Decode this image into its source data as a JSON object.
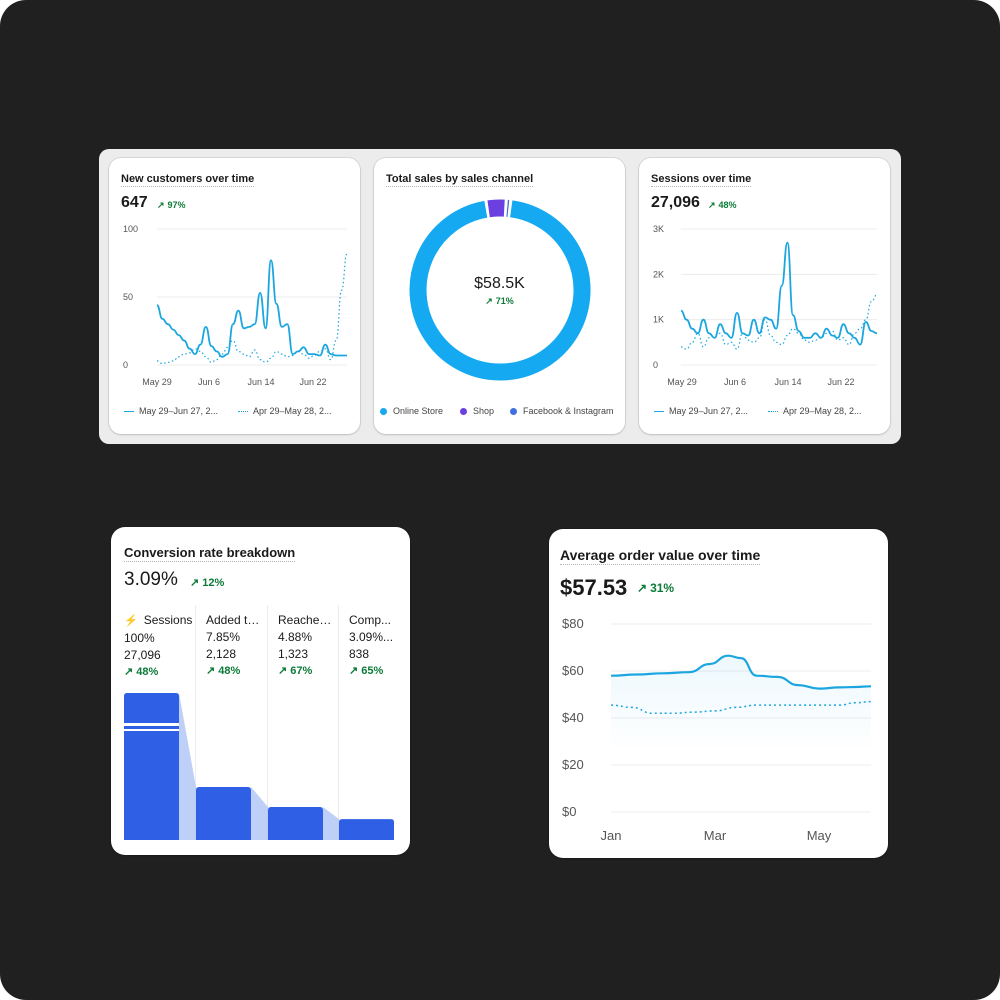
{
  "colors": {
    "line": "#1ba6e0",
    "online_store": "#14a9f0",
    "shop": "#6b3fe0",
    "facebook_instagram": "#3f6fe0",
    "funnel_bar": "#2f5fe5",
    "positive": "#0c7a37"
  },
  "new_customers": {
    "title": "New customers over time",
    "value": "647",
    "delta": "97%",
    "delta_icon": "arrow-up-right-icon",
    "legend": [
      "May 29–Jun 27, 2...",
      "Apr 29–May 28, 2..."
    ],
    "chart_data": {
      "type": "line",
      "ylim": [
        0,
        100
      ],
      "y_ticks": [
        "100",
        "50",
        "0"
      ],
      "x_ticks": [
        "May 29",
        "Jun 6",
        "Jun 14",
        "Jun 22"
      ],
      "series": [
        {
          "name": "May 29–Jun 27, 2...",
          "style": "solid",
          "values": [
            44,
            34,
            30,
            26,
            22,
            18,
            12,
            8,
            15,
            28,
            14,
            10,
            6,
            8,
            30,
            40,
            27,
            28,
            30,
            53,
            27,
            77,
            45,
            28,
            30,
            8,
            10,
            13,
            8,
            8,
            7,
            15,
            8,
            7,
            7,
            7
          ]
        },
        {
          "name": "Apr 29–May 28, 2...",
          "style": "dotted",
          "values": [
            3,
            1,
            2,
            3,
            6,
            8,
            9,
            12,
            10,
            6,
            2,
            4,
            8,
            13,
            18,
            10,
            8,
            6,
            11,
            4,
            2,
            5,
            10,
            8,
            6,
            7,
            10,
            8,
            5,
            7,
            10,
            12,
            4,
            18,
            55,
            82
          ]
        }
      ]
    }
  },
  "sales_channel": {
    "title": "Total sales by sales channel",
    "center_value": "$58.5K",
    "center_delta": "71%",
    "legend": [
      "Online Store",
      "Shop",
      "Facebook & Instagram"
    ],
    "chart_data": {
      "type": "pie",
      "categories": [
        "Online Store",
        "Shop",
        "Facebook & Instagram"
      ],
      "values": [
        95.6,
        3.6,
        0.8
      ]
    }
  },
  "sessions": {
    "title": "Sessions over time",
    "value": "27,096",
    "delta": "48%",
    "legend": [
      "May 29–Jun 27, 2...",
      "Apr 29–May 28, 2..."
    ],
    "chart_data": {
      "type": "line",
      "ylim": [
        0,
        3000
      ],
      "y_ticks": [
        "3K",
        "2K",
        "1K",
        "0"
      ],
      "x_ticks": [
        "May 29",
        "Jun 6",
        "Jun 14",
        "Jun 22"
      ],
      "series": [
        {
          "name": "May 29–Jun 27, 2...",
          "style": "solid",
          "values": [
            1200,
            1000,
            800,
            700,
            1000,
            700,
            600,
            900,
            700,
            600,
            1150,
            700,
            650,
            1000,
            700,
            1050,
            1000,
            800,
            1750,
            2700,
            1100,
            750,
            600,
            600,
            700,
            600,
            800,
            650,
            600,
            900,
            700,
            600,
            450,
            950,
            750,
            700
          ]
        },
        {
          "name": "Apr 29–May 28, 2...",
          "style": "dotted",
          "values": [
            400,
            350,
            500,
            700,
            400,
            600,
            650,
            700,
            450,
            500,
            350,
            700,
            550,
            500,
            600,
            1000,
            650,
            500,
            450,
            650,
            800,
            700,
            550,
            500,
            550,
            600,
            700,
            750,
            550,
            600,
            450,
            700,
            800,
            1000,
            1400,
            1550
          ]
        }
      ]
    }
  },
  "conversion": {
    "title": "Conversion rate breakdown",
    "value": "3.09%",
    "delta": "12%",
    "steps": [
      {
        "label": "Sessions",
        "rate": "100%",
        "count": "27,096",
        "delta": "48%"
      },
      {
        "label": "Added to...",
        "rate": "7.85%",
        "count": "2,128",
        "delta": "48%"
      },
      {
        "label": "Reached...",
        "rate": "4.88%",
        "count": "1,323",
        "delta": "67%"
      },
      {
        "label": "Comp...",
        "rate": "3.09%...",
        "count": "838",
        "delta": "65%"
      }
    ],
    "chart_data": {
      "type": "bar",
      "categories": [
        "Sessions",
        "Added to...",
        "Reached...",
        "Comp..."
      ],
      "values": [
        27096,
        2128,
        1323,
        838
      ],
      "axis_break": true
    }
  },
  "aov": {
    "title": "Average order value over time",
    "value": "$57.53",
    "delta": "31%",
    "chart_data": {
      "type": "line",
      "ylim": [
        0,
        80
      ],
      "y_ticks": [
        "$80",
        "$60",
        "$40",
        "$20",
        "$0"
      ],
      "x_ticks": [
        "Jan",
        "Mar",
        "May"
      ],
      "series": [
        {
          "style": "solid",
          "x": [
            0,
            0.1,
            0.2,
            0.3,
            0.38,
            0.45,
            0.5,
            0.56,
            0.64,
            0.72,
            0.8,
            0.88,
            0.94,
            1.0
          ],
          "values": [
            58,
            58.5,
            59,
            59.5,
            63,
            66.5,
            65.5,
            58,
            57.5,
            54,
            52.5,
            53,
            53.2,
            53.5
          ]
        },
        {
          "style": "dotted",
          "x": [
            0,
            0.08,
            0.16,
            0.24,
            0.32,
            0.4,
            0.48,
            0.56,
            0.64,
            0.72,
            0.8,
            0.88,
            0.94,
            1.0
          ],
          "values": [
            45.5,
            44.5,
            42,
            42,
            42.5,
            43,
            44.5,
            45.5,
            45.5,
            45.5,
            45.5,
            45.5,
            46.5,
            47
          ]
        }
      ]
    }
  }
}
